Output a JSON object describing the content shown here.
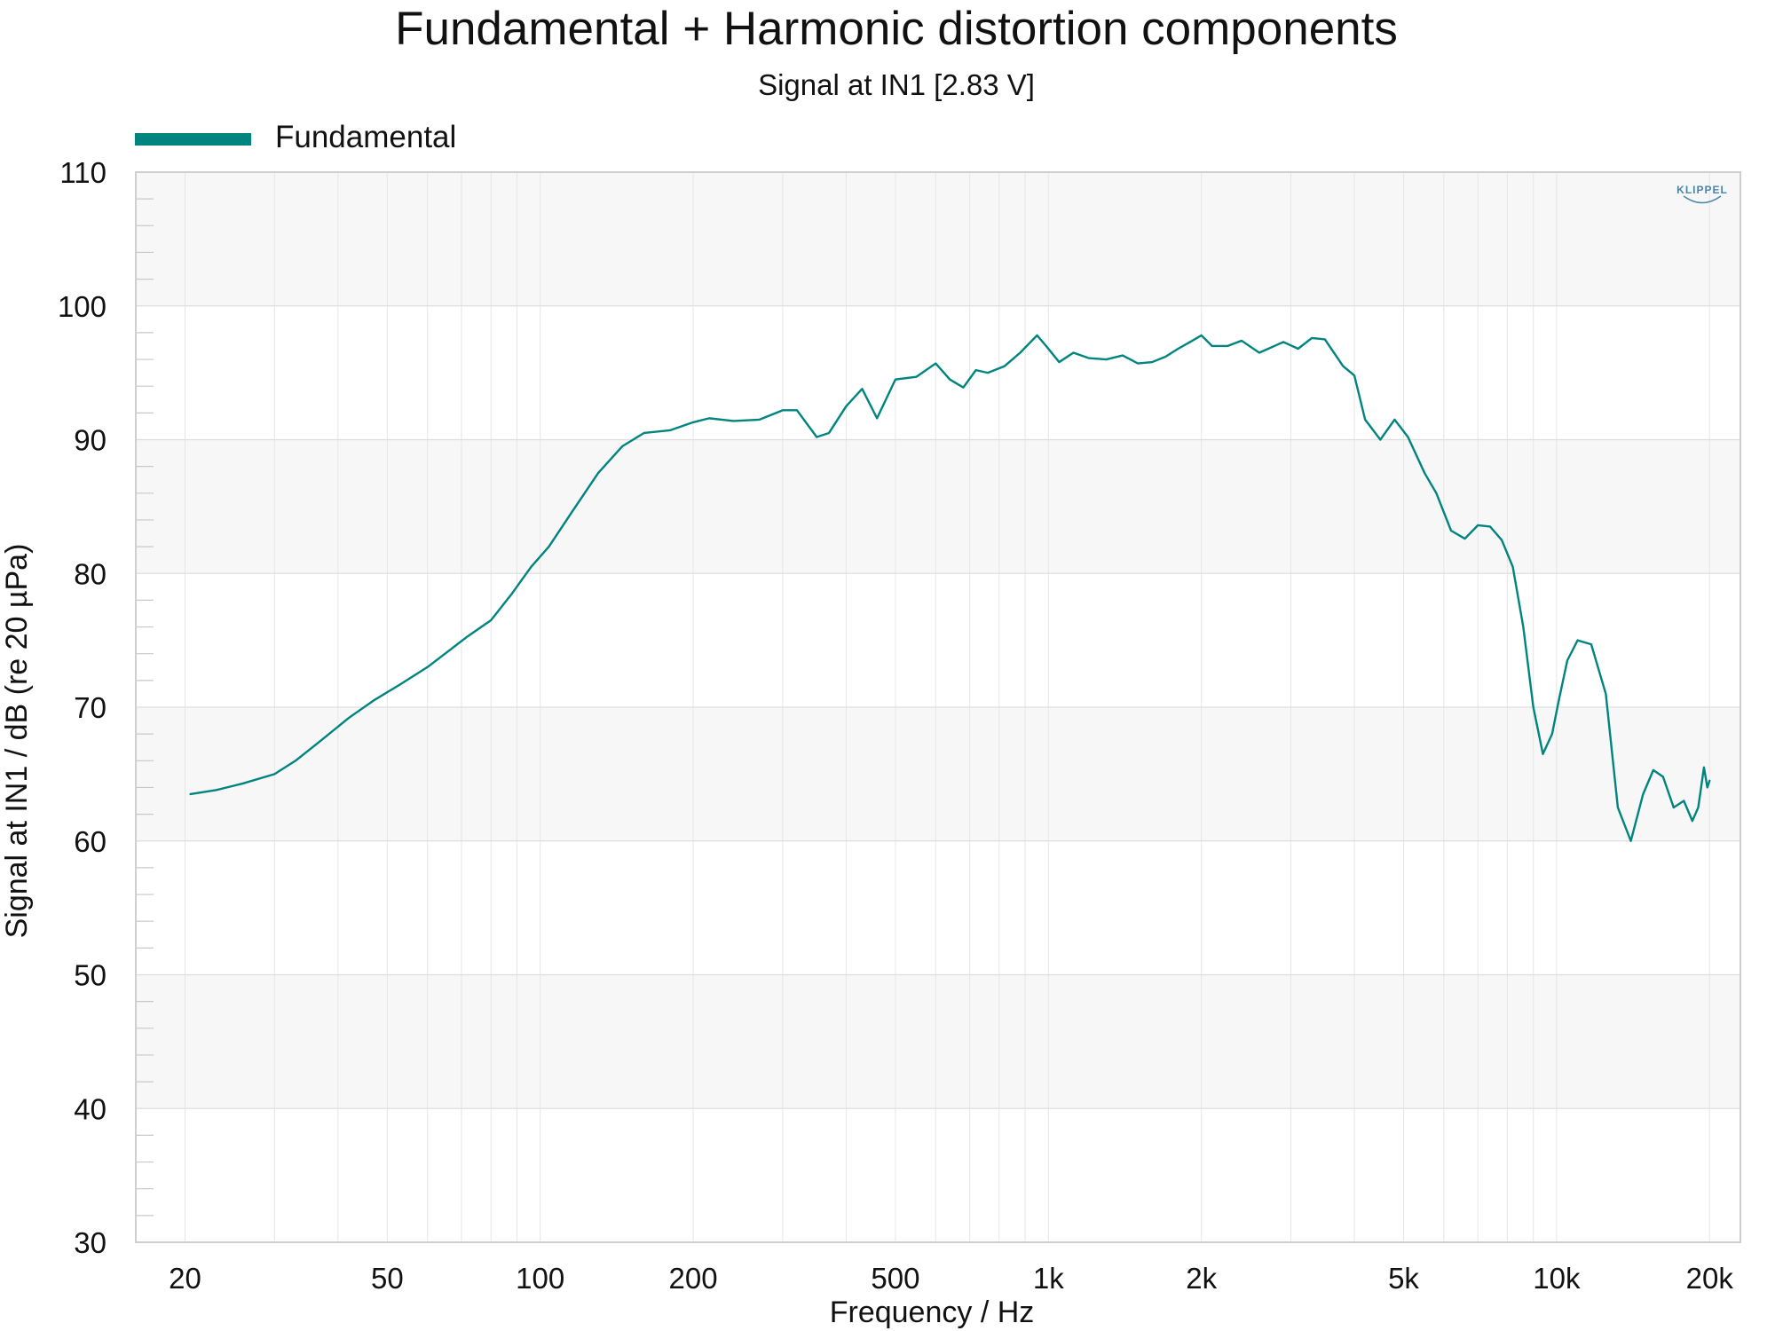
{
  "chart_data": {
    "type": "line",
    "title": "Fundamental + Harmonic distortion components",
    "subtitle": "Signal at IN1 [2.83 V]",
    "xlabel": "Frequency / Hz",
    "ylabel": "Signal at IN1 / dB (re 20 µPa)",
    "x_scale": "log",
    "xlim": [
      16,
      23000
    ],
    "ylim": [
      30,
      110
    ],
    "x_ticks": [
      {
        "value": 20,
        "label": "20"
      },
      {
        "value": 50,
        "label": "50"
      },
      {
        "value": 100,
        "label": "100"
      },
      {
        "value": 200,
        "label": "200"
      },
      {
        "value": 500,
        "label": "500"
      },
      {
        "value": 1000,
        "label": "1k"
      },
      {
        "value": 2000,
        "label": "2k"
      },
      {
        "value": 5000,
        "label": "5k"
      },
      {
        "value": 10000,
        "label": "10k"
      },
      {
        "value": 20000,
        "label": "20k"
      }
    ],
    "y_ticks": [
      {
        "value": 30,
        "label": "30"
      },
      {
        "value": 40,
        "label": "40"
      },
      {
        "value": 50,
        "label": "50"
      },
      {
        "value": 60,
        "label": "60"
      },
      {
        "value": 70,
        "label": "70"
      },
      {
        "value": 80,
        "label": "80"
      },
      {
        "value": 90,
        "label": "90"
      },
      {
        "value": 100,
        "label": "100"
      },
      {
        "value": 110,
        "label": "110"
      }
    ],
    "grid": true,
    "legend_position": "top-left",
    "watermark": "KLIPPEL",
    "series": [
      {
        "name": "Fundamental",
        "color": "#00847f",
        "x": [
          20.5,
          23,
          26,
          30,
          33,
          37,
          42,
          47,
          53,
          60,
          66,
          72,
          80,
          88,
          96,
          104,
          115,
          130,
          145,
          160,
          180,
          200,
          215,
          240,
          270,
          300,
          320,
          350,
          370,
          400,
          430,
          460,
          500,
          550,
          600,
          640,
          680,
          720,
          760,
          820,
          880,
          950,
          990,
          1050,
          1120,
          1200,
          1300,
          1400,
          1500,
          1600,
          1700,
          1800,
          1900,
          2000,
          2100,
          2250,
          2400,
          2600,
          2900,
          3100,
          3300,
          3500,
          3800,
          4000,
          4200,
          4500,
          4800,
          5100,
          5500,
          5800,
          6200,
          6600,
          7000,
          7400,
          7800,
          8200,
          8600,
          9000,
          9400,
          9800,
          10100,
          10500,
          11000,
          11700,
          12500,
          13200,
          14000,
          14800,
          15500,
          16200,
          17000,
          17800,
          18500,
          19000,
          19500,
          19800,
          20000
        ],
        "values": [
          63.5,
          63.8,
          64.3,
          65.0,
          66.0,
          67.5,
          69.2,
          70.5,
          71.7,
          73.0,
          74.2,
          75.3,
          76.5,
          78.5,
          80.5,
          82.0,
          84.5,
          87.5,
          89.5,
          90.5,
          90.7,
          91.3,
          91.6,
          91.4,
          91.5,
          92.2,
          92.2,
          90.2,
          90.5,
          92.5,
          93.8,
          91.6,
          94.5,
          94.7,
          95.7,
          94.5,
          93.9,
          95.2,
          95.0,
          95.5,
          96.5,
          97.8,
          97.0,
          95.8,
          96.5,
          96.1,
          96.0,
          96.3,
          95.7,
          95.8,
          96.2,
          96.8,
          97.3,
          97.8,
          97.0,
          97.0,
          97.4,
          96.5,
          97.3,
          96.8,
          97.6,
          97.5,
          95.5,
          94.8,
          91.5,
          90.0,
          91.5,
          90.2,
          87.5,
          86.0,
          83.2,
          82.6,
          83.6,
          83.5,
          82.5,
          80.5,
          76.0,
          70.0,
          66.5,
          68.0,
          70.5,
          73.5,
          75.0,
          74.7,
          71.0,
          62.5,
          60.0,
          63.5,
          65.3,
          64.8,
          62.5,
          63.0,
          61.5,
          62.5,
          65.5,
          64.0,
          64.5
        ]
      }
    ]
  }
}
